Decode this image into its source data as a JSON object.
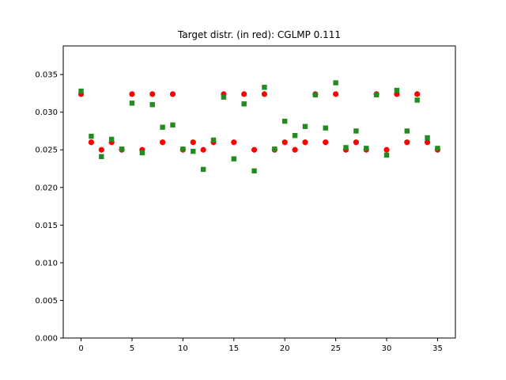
{
  "chart_data": {
    "type": "scatter",
    "title": "Target distr. (in red): CGLMP 0.111",
    "xlabel": "",
    "ylabel": "",
    "xlim": [
      -1.75,
      36.75
    ],
    "ylim": [
      0,
      0.0388
    ],
    "x_ticks": [
      0,
      5,
      10,
      15,
      20,
      25,
      30,
      35
    ],
    "x_tick_labels": [
      "0",
      "5",
      "10",
      "15",
      "20",
      "25",
      "30",
      "35"
    ],
    "y_ticks": [
      0,
      0.005,
      0.01,
      0.015,
      0.02,
      0.025,
      0.03,
      0.035
    ],
    "y_tick_labels": [
      "0.000",
      "0.005",
      "0.010",
      "0.015",
      "0.020",
      "0.025",
      "0.030",
      "0.035"
    ],
    "grid": false,
    "series": [
      {
        "marker": "circle",
        "color": "#ff0000",
        "x": [
          0,
          1,
          2,
          3,
          4,
          5,
          6,
          7,
          8,
          9,
          10,
          11,
          12,
          13,
          14,
          15,
          16,
          17,
          18,
          19,
          20,
          21,
          22,
          23,
          24,
          25,
          26,
          27,
          28,
          29,
          30,
          31,
          32,
          33,
          34,
          35
        ],
        "values": [
          0.0324,
          0.026,
          0.025,
          0.026,
          0.025,
          0.0324,
          0.025,
          0.0324,
          0.026,
          0.0324,
          0.025,
          0.026,
          0.025,
          0.026,
          0.0324,
          0.026,
          0.0324,
          0.025,
          0.0324,
          0.025,
          0.026,
          0.025,
          0.026,
          0.0324,
          0.026,
          0.0324,
          0.025,
          0.026,
          0.025,
          0.0324,
          0.025,
          0.0324,
          0.026,
          0.0324,
          0.026,
          0.025
        ]
      },
      {
        "marker": "square",
        "color": "#228b22",
        "x": [
          0,
          1,
          2,
          3,
          4,
          5,
          6,
          7,
          8,
          9,
          10,
          11,
          12,
          13,
          14,
          15,
          16,
          17,
          18,
          19,
          20,
          21,
          22,
          23,
          24,
          25,
          26,
          27,
          28,
          29,
          30,
          31,
          32,
          33,
          34,
          35
        ],
        "values": [
          0.0328,
          0.0268,
          0.0241,
          0.0264,
          0.0251,
          0.0312,
          0.0246,
          0.031,
          0.028,
          0.0283,
          0.0251,
          0.0248,
          0.0224,
          0.0263,
          0.032,
          0.0238,
          0.0311,
          0.0222,
          0.0333,
          0.0251,
          0.0288,
          0.0269,
          0.0281,
          0.0323,
          0.0279,
          0.0339,
          0.0253,
          0.0275,
          0.0252,
          0.0323,
          0.0243,
          0.0329,
          0.0275,
          0.0316,
          0.0266,
          0.0252
        ]
      }
    ]
  }
}
